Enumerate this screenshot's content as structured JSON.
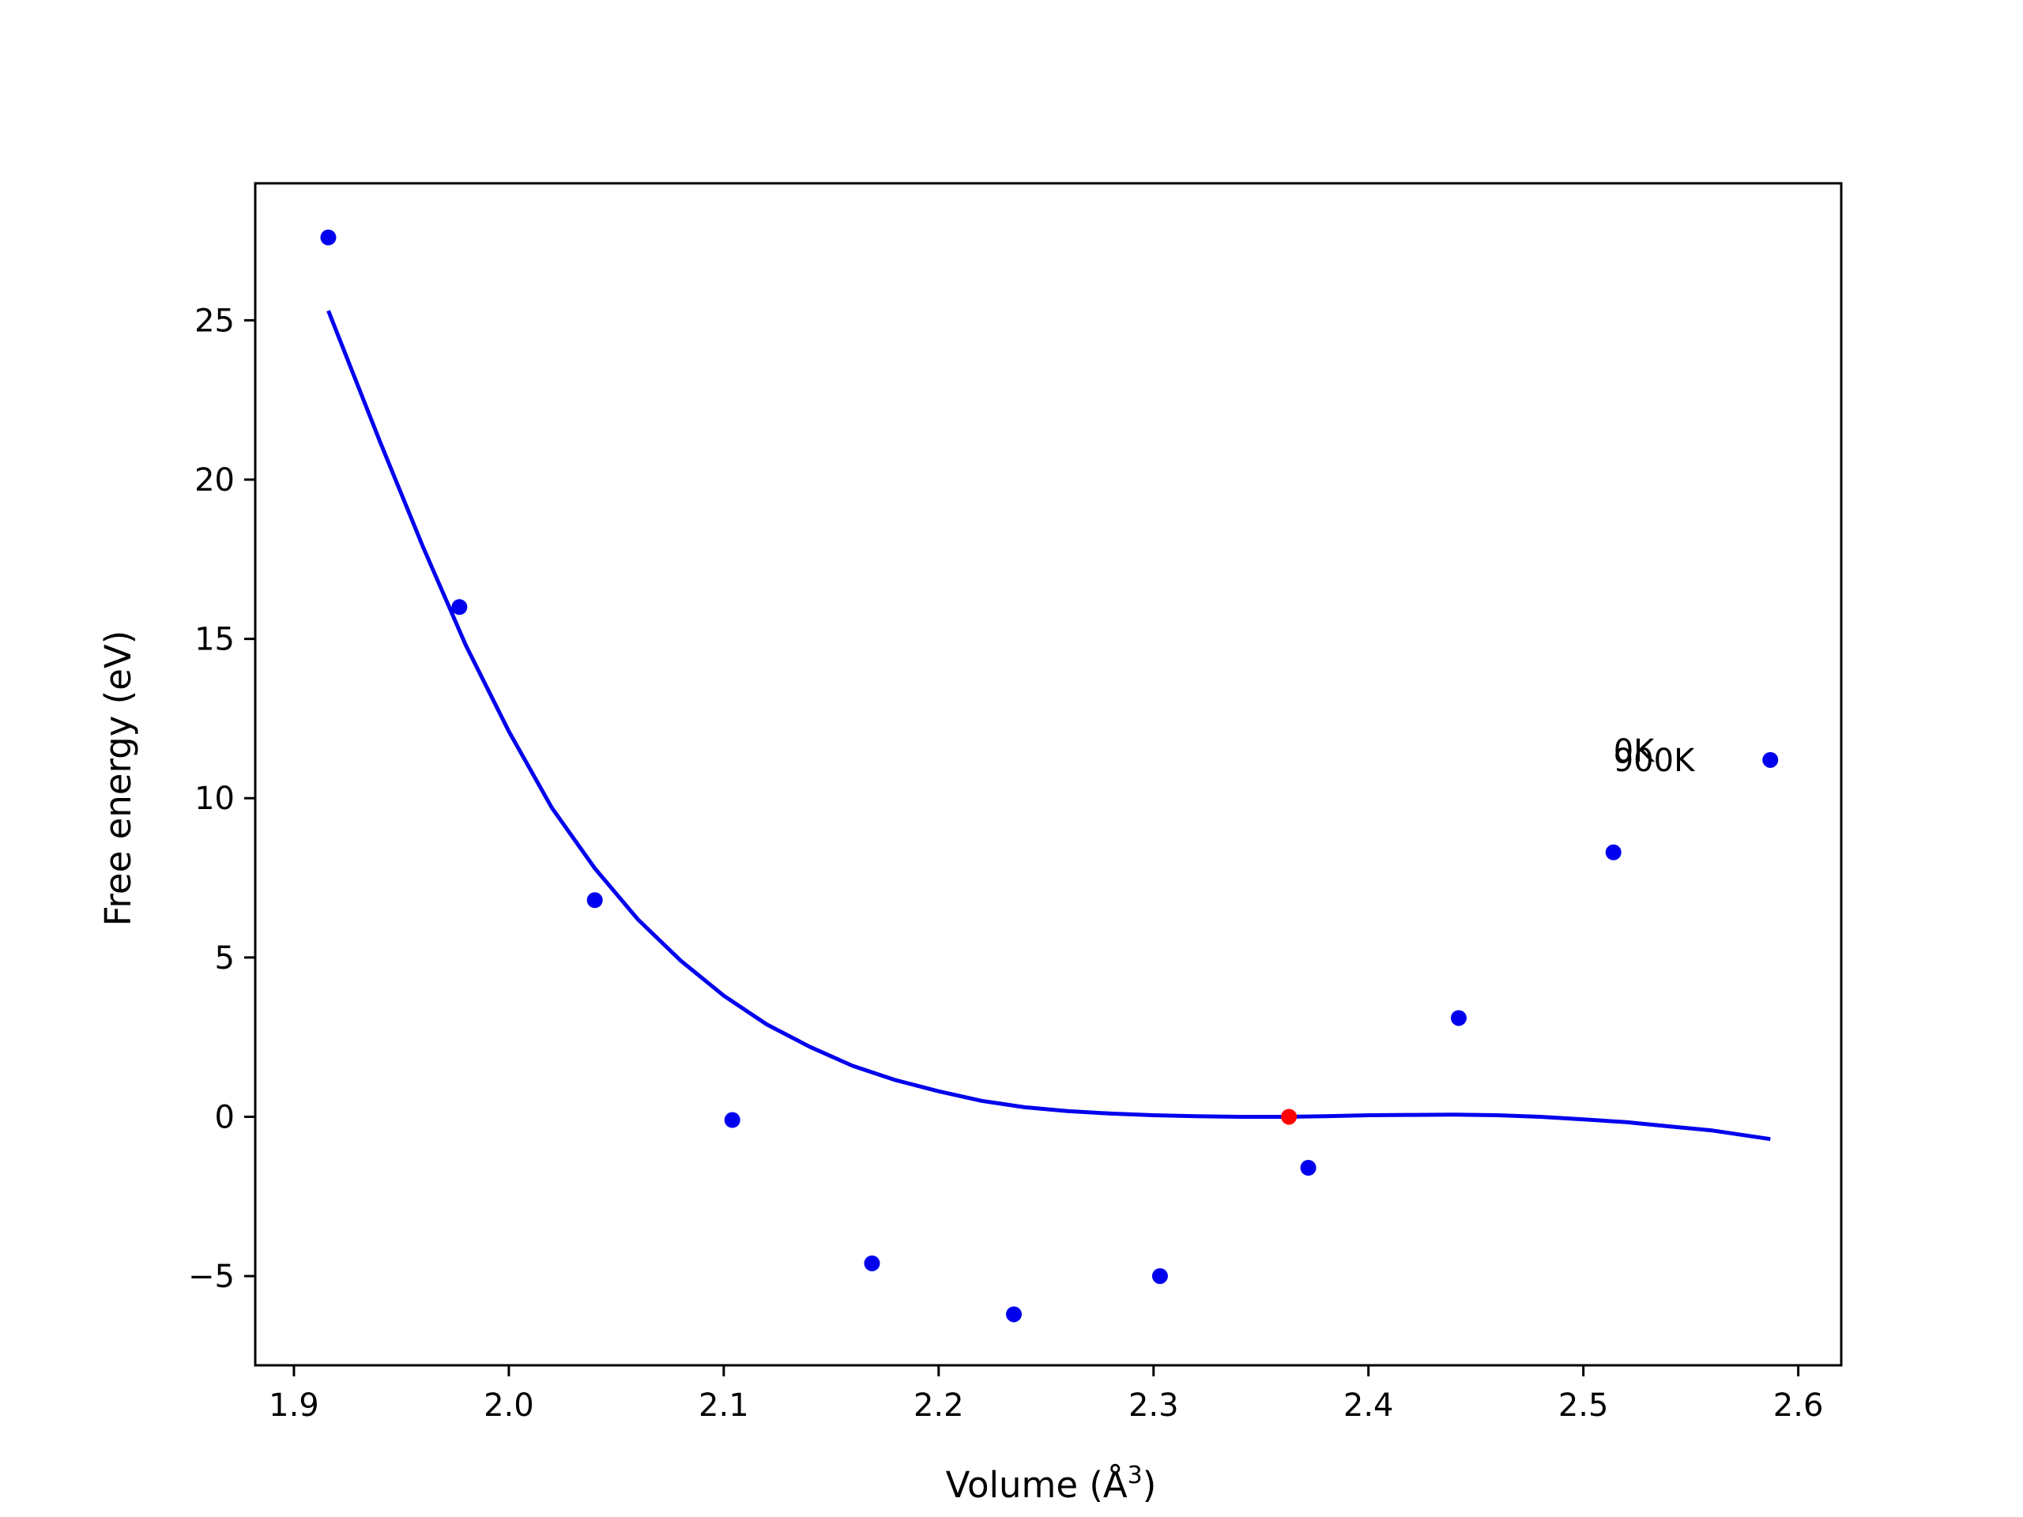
{
  "chart_data": {
    "type": "scatter",
    "title": "",
    "xlabel": "Volume (Å",
    "xlabel_sup": "3",
    "xlabel_close": ")",
    "ylabel": "Free energy (eV)",
    "xlim": [
      1.882,
      2.62
    ],
    "ylim": [
      -7.8,
      29.3
    ],
    "x_ticks": [
      1.9,
      2.0,
      2.1,
      2.2,
      2.3,
      2.4,
      2.5,
      2.6
    ],
    "x_tick_labels": [
      "1.9",
      "2.0",
      "2.1",
      "2.2",
      "2.3",
      "2.4",
      "2.5",
      "2.6"
    ],
    "y_ticks": [
      -5,
      0,
      5,
      10,
      15,
      20,
      25
    ],
    "y_tick_labels": [
      "−5",
      "0",
      "5",
      "10",
      "15",
      "20",
      "25"
    ],
    "grid": false,
    "series": [
      {
        "kind": "points",
        "color": "#0000ee",
        "x": [
          1.916,
          1.977,
          2.04,
          2.104,
          2.169,
          2.235,
          2.303,
          2.372,
          2.442,
          2.514,
          2.587
        ],
        "y": [
          27.6,
          16.0,
          6.8,
          -0.1,
          -4.6,
          -6.2,
          -5.0,
          -1.6,
          3.1,
          8.3,
          11.2
        ]
      },
      {
        "kind": "line",
        "color": "#0000ee",
        "x": [
          1.916,
          1.94,
          1.96,
          1.98,
          2.0,
          2.02,
          2.04,
          2.06,
          2.08,
          2.1,
          2.12,
          2.14,
          2.16,
          2.18,
          2.2,
          2.22,
          2.24,
          2.26,
          2.28,
          2.3,
          2.32,
          2.34,
          2.36,
          2.38,
          2.4,
          2.42,
          2.44,
          2.46,
          2.48,
          2.5,
          2.52,
          2.54,
          2.56,
          2.587
        ],
        "y": [
          25.3,
          21.2,
          17.9,
          14.8,
          12.1,
          9.7,
          7.8,
          6.2,
          4.9,
          3.8,
          2.9,
          2.2,
          1.6,
          1.15,
          0.8,
          0.5,
          0.3,
          0.18,
          0.1,
          0.05,
          0.02,
          0.0,
          0.0,
          0.02,
          0.05,
          0.06,
          0.07,
          0.05,
          0.0,
          -0.08,
          -0.17,
          -0.3,
          -0.43,
          -0.7
        ]
      },
      {
        "kind": "marker",
        "color": "#ff0000",
        "x": [
          2.363
        ],
        "y": [
          0.0
        ]
      }
    ],
    "annotations": [
      {
        "text": "0K",
        "x": 2.514,
        "y": 11.5
      },
      {
        "text": "900K",
        "x": 2.514,
        "y": 11.2
      }
    ]
  }
}
